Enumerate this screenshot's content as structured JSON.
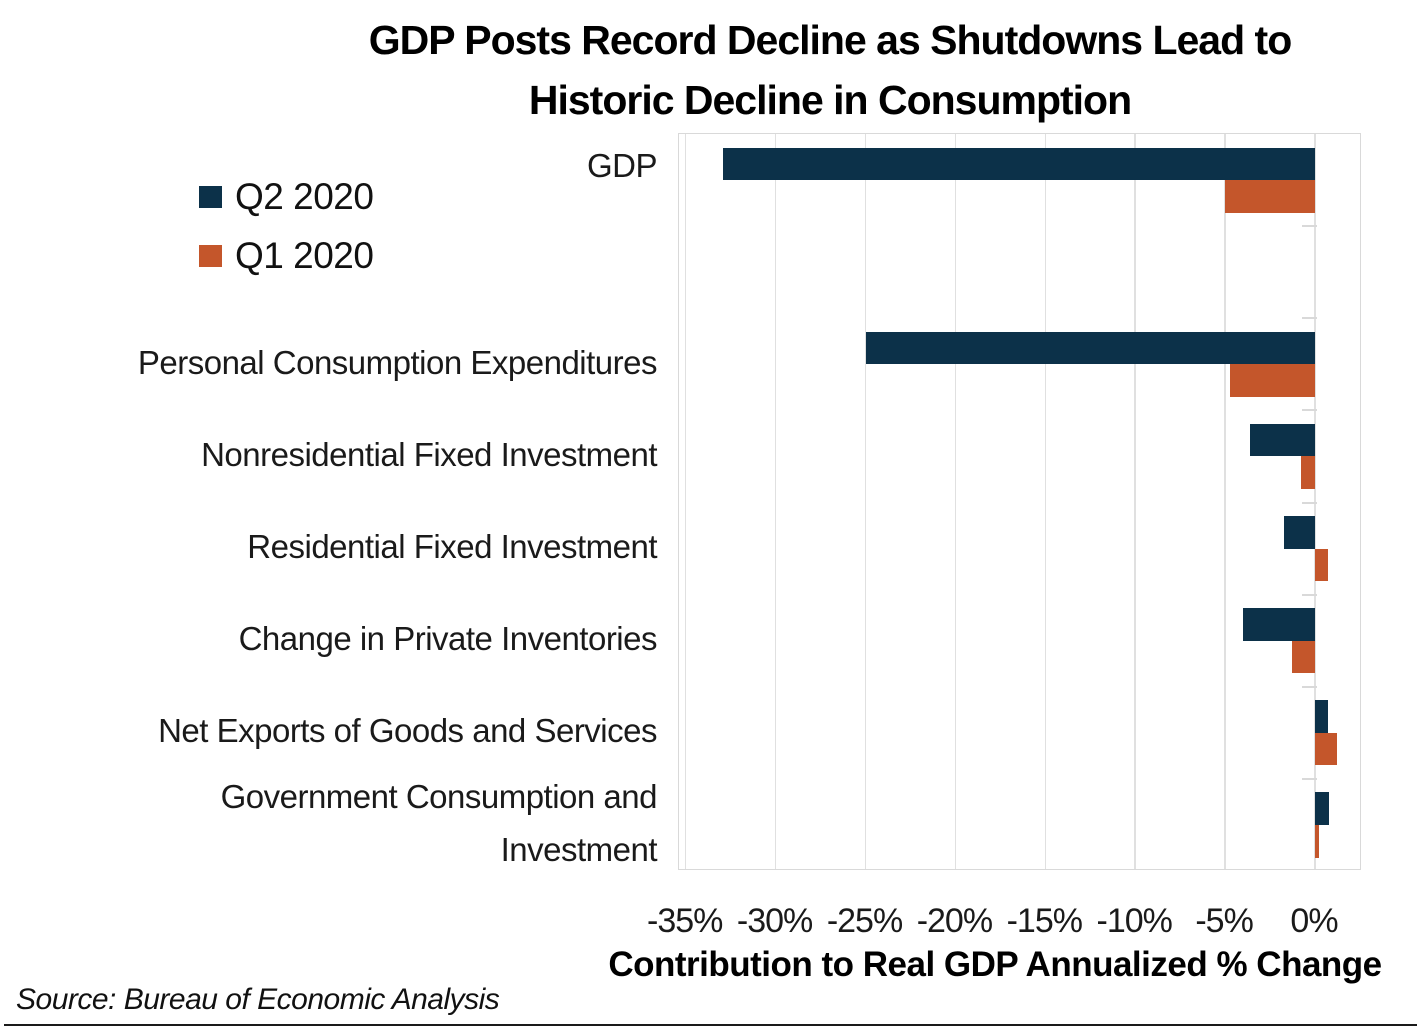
{
  "header": {
    "title_lines": [
      "GDP Posts Record Decline as Shutdowns Lead to",
      "Historic Decline in Consumption"
    ]
  },
  "chart_data": {
    "type": "bar",
    "orientation": "horizontal",
    "title": "GDP Posts Record Decline as Shutdowns Lead to Historic Decline in Consumption",
    "categories": [
      "GDP",
      "Personal Consumption Expenditures",
      "Nonresidential Fixed Investment",
      "Residential Fixed Investment",
      "Change in Private Inventories",
      "Net Exports of Goods and Services",
      "Government Consumption and Investment"
    ],
    "series": [
      {
        "name": "Q2 2020",
        "color": "#0C3149",
        "values": [
          -32.9,
          -25.0,
          -3.6,
          -1.7,
          -4.0,
          0.7,
          0.8
        ]
      },
      {
        "name": "Q1 2020",
        "color": "#C4562B",
        "values": [
          -5.0,
          -4.7,
          -0.8,
          0.7,
          -1.3,
          1.2,
          0.2
        ]
      }
    ],
    "x_ticks": [
      "-35%",
      "-30%",
      "-25%",
      "-20%",
      "-15%",
      "-10%",
      "-5%",
      "0%"
    ],
    "x_tick_values": [
      -35,
      -30,
      -25,
      -20,
      -15,
      -10,
      -5,
      0
    ],
    "xlim": [
      -35.4,
      2.6
    ],
    "xlabel": "Contribution to Real GDP Annualized % Change",
    "legend_position": "left",
    "grid": "vertical",
    "source": "Source: Bureau of Economic Analysis"
  }
}
